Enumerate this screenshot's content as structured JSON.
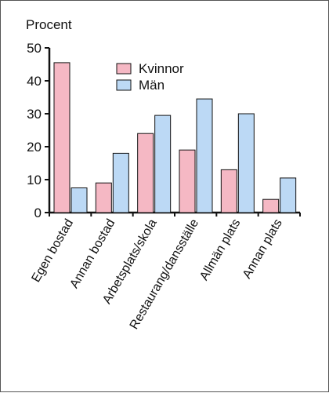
{
  "chart_data": {
    "type": "bar",
    "title": "",
    "ylabel": "Procent",
    "xlabel": "",
    "ylim": [
      0,
      50
    ],
    "yticks": [
      0,
      10,
      20,
      30,
      40,
      50
    ],
    "grid": false,
    "legend_position": "top-center",
    "categories": [
      "Egen bostad",
      "Annan bostad",
      "Arbetsplats/skola",
      "Restaurang/dansställe",
      "Allmän plats",
      "Annan plats"
    ],
    "series": [
      {
        "name": "Kvinnor",
        "color": "#f5b8c4",
        "values": [
          45.5,
          9,
          24,
          19,
          13,
          4
        ]
      },
      {
        "name": "Män",
        "color": "#bcd9f5",
        "values": [
          7.5,
          18,
          29.5,
          34.5,
          30,
          10.5
        ]
      }
    ]
  }
}
